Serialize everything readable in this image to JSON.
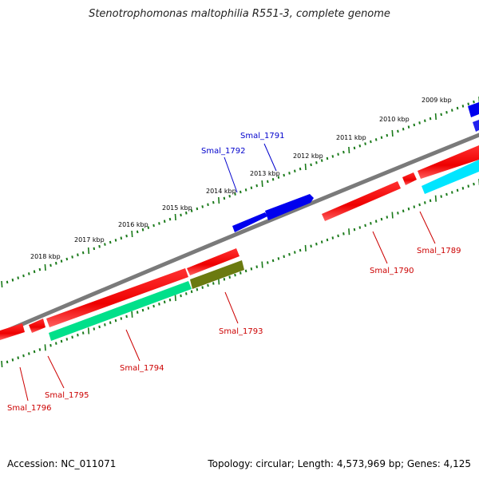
{
  "title": "Stenotrophomonas maltophilia R551-3, complete genome",
  "footer": {
    "accession": "Accession: NC_011071",
    "summary": "Topology: circular; Length: 4,573,969 bp; Genes: 4,125"
  },
  "ruler": {
    "labels": [
      "2018 kbp",
      "2017 kbp",
      "2016 kbp",
      "2015 kbp",
      "2014 kbp",
      "2013 kbp",
      "2012 kbp",
      "2011 kbp",
      "2010 kbp",
      "2009 kbp"
    ]
  },
  "genes": [
    {
      "name": "Smal_1791",
      "strand": "plus",
      "color": "#0000ee"
    },
    {
      "name": "Smal_1792",
      "strand": "plus",
      "color": "#0000ee"
    },
    {
      "name": "Smal_1789",
      "strand": "minus",
      "color": "#cc0000"
    },
    {
      "name": "Smal_1790",
      "strand": "minus",
      "color": "#cc0000"
    },
    {
      "name": "Smal_1793",
      "strand": "minus",
      "color": "#cc0000"
    },
    {
      "name": "Smal_1794",
      "strand": "minus",
      "color": "#cc0000"
    },
    {
      "name": "Smal_1795",
      "strand": "minus",
      "color": "#cc0000"
    },
    {
      "name": "Smal_1796",
      "strand": "minus",
      "color": "#cc0000"
    }
  ],
  "colors": {
    "backbone": "#7a7a7a",
    "ruler_tick": "#1a7a1a",
    "gene_red": "#ee0000",
    "gene_blue": "#0000ee",
    "gene_cyan": "#00e5ff",
    "gene_seagreen": "#00e08a",
    "gene_olive": "#6b7a10",
    "label_blue": "#0000cc",
    "label_red": "#cc0000"
  }
}
